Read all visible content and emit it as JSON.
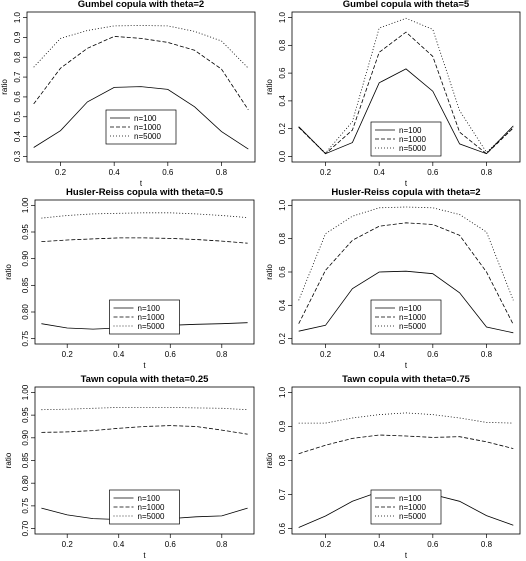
{
  "chart_data": [
    {
      "type": "line",
      "title": "Gumbel copula with theta=2",
      "xlabel": "t",
      "ylabel": "ratio",
      "x": [
        0.1,
        0.2,
        0.3,
        0.4,
        0.5,
        0.6,
        0.7,
        0.8,
        0.9
      ],
      "xticks": [
        "0.2",
        "0.4",
        "0.6",
        "0.8"
      ],
      "ylim": [
        0.3,
        1.0
      ],
      "yticks": [
        "0.3",
        "0.4",
        "0.5",
        "0.6",
        "0.7",
        "0.8",
        "0.9",
        "1.0"
      ],
      "legend_position": "lower-center",
      "series": [
        {
          "name": "n=100",
          "style": "solid",
          "values": [
            0.345,
            0.43,
            0.575,
            0.648,
            0.652,
            0.638,
            0.55,
            0.425,
            0.337
          ]
        },
        {
          "name": "n=1000",
          "style": "dashed",
          "values": [
            0.565,
            0.745,
            0.845,
            0.905,
            0.895,
            0.875,
            0.835,
            0.74,
            0.535
          ]
        },
        {
          "name": "n=5000",
          "style": "dotted",
          "values": [
            0.75,
            0.895,
            0.935,
            0.958,
            0.96,
            0.958,
            0.93,
            0.882,
            0.745
          ]
        }
      ]
    },
    {
      "type": "line",
      "title": "Gumbel copula with theta=5",
      "xlabel": "t",
      "ylabel": "ratio",
      "x": [
        0.1,
        0.2,
        0.3,
        0.4,
        0.5,
        0.6,
        0.7,
        0.8,
        0.9
      ],
      "xticks": [
        "0.2",
        "0.4",
        "0.6",
        "0.8"
      ],
      "ylim": [
        0.0,
        1.0
      ],
      "yticks": [
        "0.0",
        "0.2",
        "0.4",
        "0.6",
        "0.8",
        "1.0"
      ],
      "legend_position": "lower-center",
      "series": [
        {
          "name": "n=100",
          "style": "solid",
          "values": [
            0.215,
            0.02,
            0.1,
            0.53,
            0.63,
            0.47,
            0.09,
            0.02,
            0.22
          ]
        },
        {
          "name": "n=1000",
          "style": "dashed",
          "values": [
            0.21,
            0.02,
            0.19,
            0.75,
            0.895,
            0.72,
            0.175,
            0.02,
            0.205
          ]
        },
        {
          "name": "n=5000",
          "style": "dotted",
          "values": [
            0.21,
            0.025,
            0.25,
            0.925,
            0.995,
            0.915,
            0.33,
            0.03,
            0.21
          ]
        }
      ]
    },
    {
      "type": "line",
      "title": "Husler-Reiss copula with theta=0.5",
      "xlabel": "t",
      "ylabel": "ratio",
      "x": [
        0.1,
        0.2,
        0.3,
        0.4,
        0.5,
        0.6,
        0.7,
        0.8,
        0.9
      ],
      "xticks": [
        "0.2",
        "0.4",
        "0.6",
        "0.8"
      ],
      "ylim": [
        0.75,
        1.0
      ],
      "yticks": [
        "0.75",
        "0.80",
        "0.85",
        "0.90",
        "0.95",
        "1.00"
      ],
      "legend_position": "lower-center",
      "series": [
        {
          "name": "n=100",
          "style": "solid",
          "values": [
            0.778,
            0.77,
            0.768,
            0.77,
            0.772,
            0.775,
            0.777,
            0.778,
            0.78
          ]
        },
        {
          "name": "n=1000",
          "style": "dashed",
          "values": [
            0.932,
            0.935,
            0.937,
            0.939,
            0.939,
            0.938,
            0.936,
            0.933,
            0.929
          ]
        },
        {
          "name": "n=5000",
          "style": "dotted",
          "values": [
            0.976,
            0.981,
            0.984,
            0.985,
            0.986,
            0.986,
            0.984,
            0.981,
            0.977
          ]
        }
      ]
    },
    {
      "type": "line",
      "title": "Husler-Reiss copula with theta=2",
      "xlabel": "t",
      "ylabel": "ratio",
      "x": [
        0.1,
        0.2,
        0.3,
        0.4,
        0.5,
        0.6,
        0.7,
        0.8,
        0.9
      ],
      "xticks": [
        "0.2",
        "0.4",
        "0.6",
        "0.8"
      ],
      "ylim": [
        0.2,
        1.0
      ],
      "yticks": [
        "0.2",
        "0.4",
        "0.6",
        "0.8",
        "1.0"
      ],
      "legend_position": "lower-center",
      "series": [
        {
          "name": "n=100",
          "style": "solid",
          "values": [
            0.245,
            0.28,
            0.5,
            0.6,
            0.605,
            0.59,
            0.475,
            0.27,
            0.235
          ]
        },
        {
          "name": "n=1000",
          "style": "dashed",
          "values": [
            0.29,
            0.61,
            0.79,
            0.875,
            0.895,
            0.885,
            0.82,
            0.6,
            0.285
          ]
        },
        {
          "name": "n=5000",
          "style": "dotted",
          "values": [
            0.43,
            0.83,
            0.935,
            0.985,
            0.99,
            0.985,
            0.945,
            0.84,
            0.43
          ]
        }
      ]
    },
    {
      "type": "line",
      "title": "Tawn copula with theta=0.25",
      "xlabel": "t",
      "ylabel": "ratio",
      "x": [
        0.1,
        0.2,
        0.3,
        0.4,
        0.5,
        0.6,
        0.7,
        0.8,
        0.9
      ],
      "xticks": [
        "0.2",
        "0.4",
        "0.6",
        "0.8"
      ],
      "ylim": [
        0.7,
        1.0
      ],
      "yticks": [
        "0.70",
        "0.75",
        "0.80",
        "0.85",
        "0.90",
        "0.95",
        "1.00"
      ],
      "legend_position": "lower-center",
      "series": [
        {
          "name": "n=100",
          "style": "solid",
          "values": [
            0.745,
            0.73,
            0.722,
            0.72,
            0.718,
            0.722,
            0.726,
            0.728,
            0.745
          ]
        },
        {
          "name": "n=1000",
          "style": "dashed",
          "values": [
            0.912,
            0.913,
            0.916,
            0.921,
            0.925,
            0.927,
            0.925,
            0.917,
            0.908
          ]
        },
        {
          "name": "n=5000",
          "style": "dotted",
          "values": [
            0.962,
            0.963,
            0.965,
            0.967,
            0.967,
            0.967,
            0.966,
            0.965,
            0.962
          ]
        }
      ]
    },
    {
      "type": "line",
      "title": "Tawn copula with theta=0.75",
      "xlabel": "t",
      "ylabel": "ratio",
      "x": [
        0.1,
        0.2,
        0.3,
        0.4,
        0.5,
        0.6,
        0.7,
        0.8,
        0.9
      ],
      "xticks": [
        "0.2",
        "0.4",
        "0.6",
        "0.8"
      ],
      "ylim": [
        0.6,
        1.0
      ],
      "yticks": [
        "0.6",
        "0.7",
        "0.8",
        "0.9",
        "1.0"
      ],
      "legend_position": "lower-center",
      "series": [
        {
          "name": "n=100",
          "style": "solid",
          "values": [
            0.603,
            0.637,
            0.68,
            0.708,
            0.705,
            0.7,
            0.68,
            0.638,
            0.61
          ]
        },
        {
          "name": "n=1000",
          "style": "dashed",
          "values": [
            0.82,
            0.845,
            0.865,
            0.875,
            0.872,
            0.868,
            0.87,
            0.855,
            0.835
          ]
        },
        {
          "name": "n=5000",
          "style": "dotted",
          "values": [
            0.91,
            0.91,
            0.925,
            0.935,
            0.94,
            0.935,
            0.925,
            0.912,
            0.91
          ]
        }
      ]
    }
  ]
}
